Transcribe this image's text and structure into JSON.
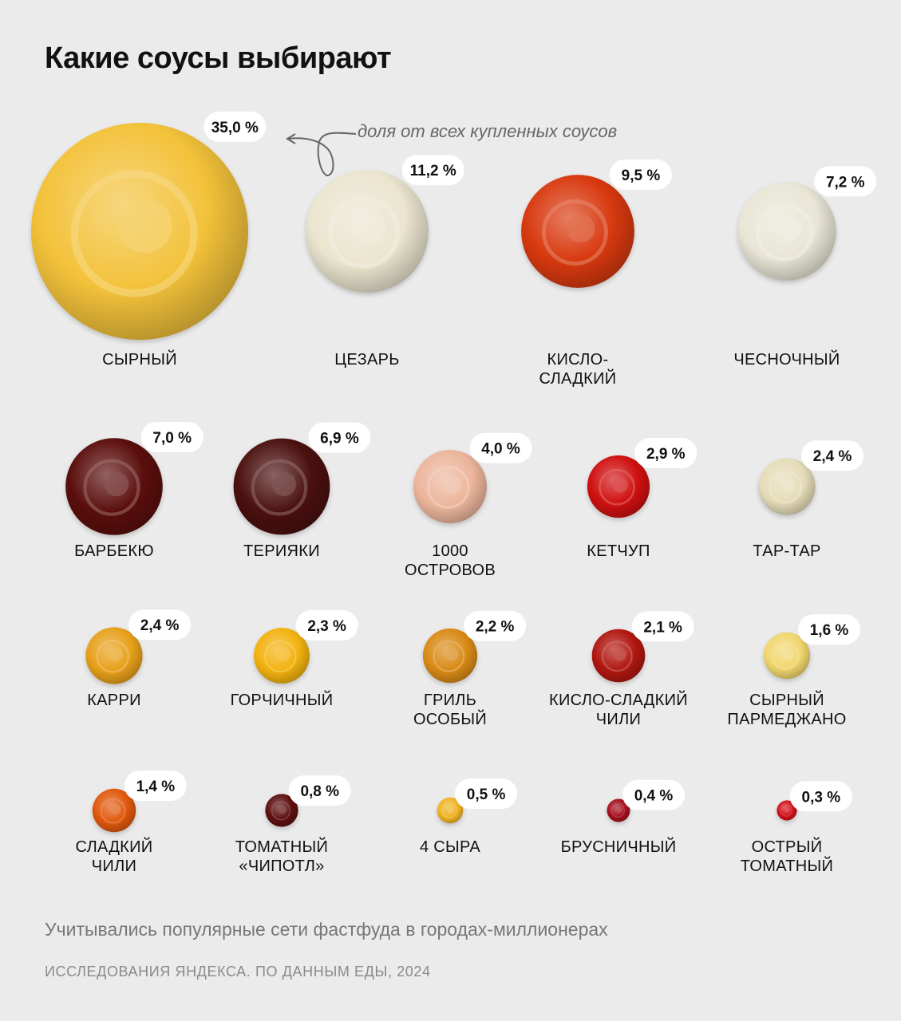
{
  "header": {
    "title": "Какие соусы выбирают"
  },
  "annotation": {
    "text": "доля от всех купленных соусов"
  },
  "footer": {
    "note": "Учитывались популярные сети фастфуда в городах-миллионерах",
    "source": "ИССЛЕДОВАНИЯ ЯНДЕКСА. ПО ДАННЫМ ЕДЫ, 2024"
  },
  "colors": {
    "background": "#ebebeb",
    "pill": "#ffffff",
    "text": "#111111",
    "muted": "#777777"
  },
  "chart_data": {
    "type": "bubble",
    "title": "Какие соусы выбирают",
    "value_unit": "%",
    "layout": "grid",
    "rows": 5,
    "items": [
      {
        "name": [
          "СЫРНЫЙ"
        ],
        "value": 35.0,
        "label": "35,0 %",
        "color": "#f3c23a",
        "row": 1,
        "col": 1
      },
      {
        "name": [
          "ЦЕЗАРЬ"
        ],
        "value": 11.2,
        "label": "11,2 %",
        "color": "#ebe5cf",
        "row": 1,
        "col": 2
      },
      {
        "name": [
          "КИСЛО-",
          "СЛАДКИЙ"
        ],
        "value": 9.5,
        "label": "9,5 %",
        "color": "#d8390f",
        "row": 1,
        "col": 3
      },
      {
        "name": [
          "ЧЕСНОЧНЫЙ"
        ],
        "value": 7.2,
        "label": "7,2 %",
        "color": "#e9e6d6",
        "row": 1,
        "col": 4
      },
      {
        "name": [
          "БАРБЕКЮ"
        ],
        "value": 7.0,
        "label": "7,0 %",
        "color": "#5a0e0c",
        "row": 2,
        "col": 1
      },
      {
        "name": [
          "ТЕРИЯКИ"
        ],
        "value": 6.9,
        "label": "6,9 %",
        "color": "#4a100e",
        "row": 2,
        "col": 2
      },
      {
        "name": [
          "1000",
          "ОСТРОВОВ"
        ],
        "value": 4.0,
        "label": "4,0 %",
        "color": "#ecb59c",
        "row": 2,
        "col": 3
      },
      {
        "name": [
          "КЕТЧУП"
        ],
        "value": 2.9,
        "label": "2,9 %",
        "color": "#cf1010",
        "row": 2,
        "col": 4
      },
      {
        "name": [
          "ТАР-ТАР"
        ],
        "value": 2.4,
        "label": "2,4 %",
        "color": "#e5dcb8",
        "row": 2,
        "col": 5
      },
      {
        "name": [
          "КАРРИ"
        ],
        "value": 2.4,
        "label": "2,4 %",
        "color": "#e7a01a",
        "row": 3,
        "col": 1
      },
      {
        "name": [
          "ГОРЧИЧНЫЙ"
        ],
        "value": 2.3,
        "label": "2,3 %",
        "color": "#f2b20e",
        "row": 3,
        "col": 2
      },
      {
        "name": [
          "ГРИЛЬ",
          "ОСОБЫЙ"
        ],
        "value": 2.2,
        "label": "2,2 %",
        "color": "#d98a16",
        "row": 3,
        "col": 3
      },
      {
        "name": [
          "КИСЛО-СЛАДКИЙ",
          "ЧИЛИ"
        ],
        "value": 2.1,
        "label": "2,1 %",
        "color": "#b0170f",
        "row": 3,
        "col": 4
      },
      {
        "name": [
          "СЫРНЫЙ",
          "ПАРМЕДЖАНО"
        ],
        "value": 1.6,
        "label": "1,6 %",
        "color": "#f1d66e",
        "row": 3,
        "col": 5
      },
      {
        "name": [
          "СЛАДКИЙ",
          "ЧИЛИ"
        ],
        "value": 1.4,
        "label": "1,4 %",
        "color": "#e0580c",
        "row": 4,
        "col": 1
      },
      {
        "name": [
          "ТОМАТНЫЙ",
          "«ЧИПОТЛ»"
        ],
        "value": 0.8,
        "label": "0,8 %",
        "color": "#5e0f0f",
        "row": 4,
        "col": 2
      },
      {
        "name": [
          "4 СЫРА"
        ],
        "value": 0.5,
        "label": "0,5 %",
        "color": "#f0b324",
        "row": 4,
        "col": 3
      },
      {
        "name": [
          "БРУСНИЧНЫЙ"
        ],
        "value": 0.4,
        "label": "0,4 %",
        "color": "#a5101e",
        "row": 4,
        "col": 4
      },
      {
        "name": [
          "ОСТРЫЙ",
          "ТОМАТНЫЙ"
        ],
        "value": 0.3,
        "label": "0,3 %",
        "color": "#d2121a",
        "row": 4,
        "col": 5
      }
    ]
  }
}
